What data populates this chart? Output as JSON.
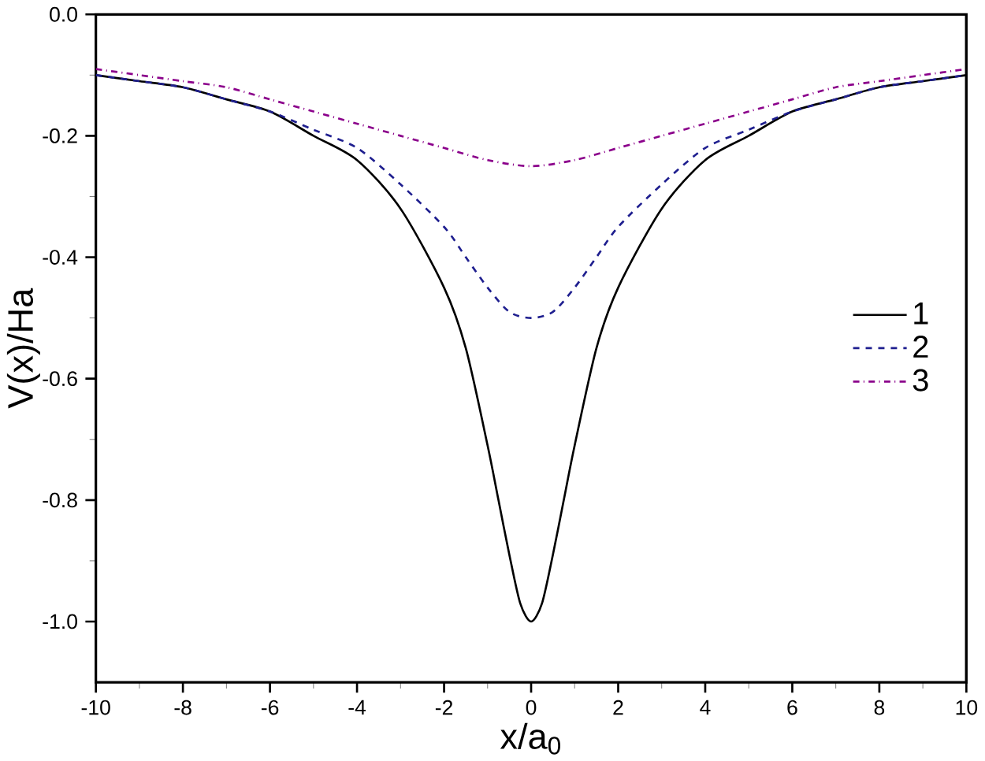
{
  "chart_data": {
    "type": "line",
    "xlabel": "x/a$_{0}$",
    "ylabel": "V(x)/Ha",
    "xlim": [
      -10,
      10
    ],
    "ylim": [
      -1.1,
      0
    ],
    "xticks": [
      -10,
      -8,
      -6,
      -4,
      -2,
      0,
      2,
      4,
      6,
      8,
      10
    ],
    "yticks": [
      {
        "value": 0,
        "label": "0.0"
      },
      {
        "value": -0.2,
        "label": "-0.2"
      },
      {
        "value": -0.4,
        "label": "-0.4"
      },
      {
        "value": -0.6,
        "label": "-0.6"
      },
      {
        "value": -0.8,
        "label": "-0.8"
      },
      {
        "value": -1,
        "label": "-1.0"
      }
    ],
    "legend": "right",
    "grid": false,
    "marker": "none",
    "series": [
      {
        "name": "1",
        "color": "#000000",
        "line_style": "solid",
        "x": [
          -10,
          -9,
          -8,
          -7,
          -6,
          -5,
          -4,
          -3,
          -2,
          -1.5,
          -1,
          -0.75,
          -0.5,
          -0.25,
          0,
          0.25,
          0.5,
          0.75,
          1,
          1.5,
          2,
          3,
          4,
          5,
          6,
          7,
          8,
          9,
          10
        ],
        "values": [
          -0.1,
          -0.11,
          -0.12,
          -0.14,
          -0.16,
          -0.2,
          -0.24,
          -0.32,
          -0.45,
          -0.55,
          -0.71,
          -0.8,
          -0.89,
          -0.97,
          -1,
          -0.97,
          -0.89,
          -0.8,
          -0.71,
          -0.55,
          -0.45,
          -0.32,
          -0.24,
          -0.2,
          -0.16,
          -0.14,
          -0.12,
          -0.11,
          -0.1
        ]
      },
      {
        "name": "2",
        "color": "#1f1f8f",
        "line_style": "dashed",
        "x": [
          -10,
          -9,
          -8,
          -7,
          -6,
          -5,
          -4,
          -3,
          -2,
          -1.5,
          -1,
          -0.5,
          0,
          0.5,
          1,
          1.5,
          2,
          3,
          4,
          5,
          6,
          7,
          8,
          9,
          10
        ],
        "values": [
          -0.1,
          -0.11,
          -0.12,
          -0.14,
          -0.16,
          -0.19,
          -0.22,
          -0.28,
          -0.35,
          -0.4,
          -0.45,
          -0.49,
          -0.5,
          -0.49,
          -0.45,
          -0.4,
          -0.35,
          -0.28,
          -0.22,
          -0.19,
          -0.16,
          -0.14,
          -0.12,
          -0.11,
          -0.1
        ]
      },
      {
        "name": "3",
        "color": "#8b008b",
        "line_style": "dashdotted",
        "x": [
          -10,
          -9,
          -8,
          -7,
          -6,
          -5,
          -4,
          -3,
          -2,
          -1,
          0,
          1,
          2,
          3,
          4,
          5,
          6,
          7,
          8,
          9,
          10
        ],
        "values": [
          -0.09,
          -0.1,
          -0.11,
          -0.12,
          -0.14,
          -0.16,
          -0.18,
          -0.2,
          -0.22,
          -0.24,
          -0.25,
          -0.24,
          -0.22,
          -0.2,
          -0.18,
          -0.16,
          -0.14,
          -0.12,
          -0.11,
          -0.1,
          -0.09
        ]
      }
    ]
  }
}
